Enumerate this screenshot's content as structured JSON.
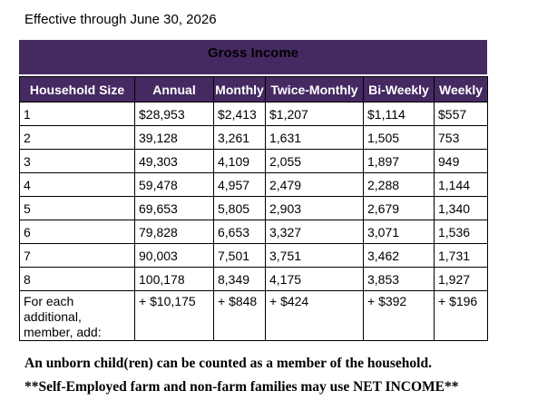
{
  "page": {
    "title": "Effective through June 30, 2026"
  },
  "table": {
    "banner": "Gross Income",
    "columns": [
      "Household Size",
      "Annual",
      "Monthly",
      "Twice-Monthly",
      "Bi-Weekly",
      "Weekly"
    ],
    "rows": [
      [
        "1",
        "$28,953",
        "$2,413",
        "$1,207",
        "$1,114",
        "$557"
      ],
      [
        "2",
        "39,128",
        "3,261",
        "1,631",
        "1,505",
        "753"
      ],
      [
        "3",
        "49,303",
        "4,109",
        "2,055",
        "1,897",
        "949"
      ],
      [
        "4",
        "59,478",
        "4,957",
        "2,479",
        "2,288",
        "1,144"
      ],
      [
        "5",
        "69,653",
        "5,805",
        "2,903",
        "2,679",
        "1,340"
      ],
      [
        "6",
        "79,828",
        "6,653",
        "3,327",
        "3,071",
        "1,536"
      ],
      [
        "7",
        "90,003",
        "7,501",
        "3,751",
        "3,462",
        "1,731"
      ],
      [
        "8",
        "100,178",
        "8,349",
        "4,175",
        "3,853",
        "1,927"
      ],
      [
        "For each additional, member, add:",
        "+ $10,175",
        "+ $848",
        "+ $424",
        "+ $392",
        "+ $196"
      ]
    ]
  },
  "notes": [
    "An unborn child(ren) can be counted as a member of the household.",
    "**Self-Employed farm and non-farm families may use NET INCOME**"
  ],
  "colors": {
    "header_purple": "#452A62",
    "border_black": "#000000",
    "header_text_white": "#FFFFFF",
    "body_text_black": "#000000"
  }
}
